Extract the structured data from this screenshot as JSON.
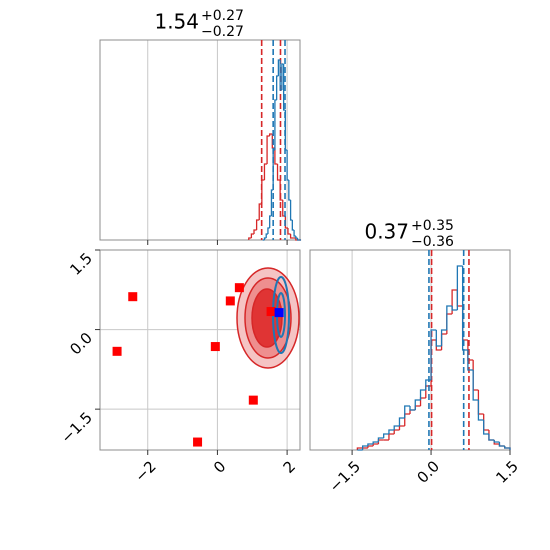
{
  "chart_data": [
    {
      "type": "histogram",
      "title": "1.54",
      "title_sup": "+0.27",
      "title_sub": "−0.27",
      "xlim": [
        -3.37,
        2.37
      ],
      "ylim": [
        0,
        100
      ],
      "xticks": [
        -2,
        0,
        2
      ],
      "tick_labels": false,
      "grid": true,
      "series": [
        {
          "color": "#d62728",
          "bins": [
            0.9,
            0.975,
            1.05,
            1.125,
            1.2,
            1.275,
            1.35,
            1.425,
            1.5,
            1.575,
            1.65,
            1.725,
            1.8,
            1.875,
            1.95,
            2.025,
            2.1,
            2.175,
            2.25,
            2.325,
            2.4
          ],
          "values": [
            1,
            3,
            5,
            10,
            18,
            30,
            38,
            52,
            53,
            46,
            38,
            30,
            20,
            12,
            6,
            3,
            1,
            1,
            0,
            0
          ],
          "quantiles": [
            1.27,
            1.81
          ]
        },
        {
          "color": "#1f77b4",
          "bins": [
            1.3,
            1.35,
            1.4,
            1.45,
            1.5,
            1.55,
            1.6,
            1.65,
            1.7,
            1.75,
            1.8,
            1.85,
            1.9,
            1.95,
            2.0,
            2.05,
            2.1,
            2.15,
            2.2,
            2.25,
            2.3,
            2.35,
            2.4
          ],
          "values": [
            0,
            1,
            3,
            6,
            12,
            25,
            45,
            70,
            82,
            90,
            75,
            88,
            65,
            45,
            30,
            20,
            10,
            5,
            2,
            1,
            0,
            0
          ],
          "quantiles": [
            1.6,
            1.94
          ]
        }
      ]
    },
    {
      "type": "scatter",
      "xlim": [
        -3.37,
        2.37
      ],
      "ylim": [
        -2.27,
        1.5
      ],
      "grid": true,
      "xticks": [
        {
          "value": -2,
          "label": "−2"
        },
        0,
        2
      ],
      "yticks": [
        1.5,
        {
          "value": 0,
          "label": "0.0"
        },
        {
          "value": -1.5,
          "label": "−1.5"
        }
      ],
      "series": [
        {
          "color": "#ff0000",
          "x": [
            -2.43,
            -2.88,
            -0.06,
            0.37,
            0.63,
            1.03,
            -0.57,
            1.54
          ],
          "y": [
            0.62,
            -0.41,
            -0.32,
            0.54,
            0.79,
            -1.33,
            -2.12,
            0.34
          ]
        },
        {
          "color": "#0000ff",
          "x": [
            1.77
          ],
          "y": [
            0.32
          ]
        }
      ]
    },
    {
      "type": "histogram",
      "title": "0.37",
      "title_sup": "+0.35",
      "title_sub": "−0.36",
      "xlim": [
        -2.3,
        1.5
      ],
      "ylim": [
        0,
        100
      ],
      "grid": true,
      "xticks": [
        {
          "value": -1.5,
          "label": "−1.5"
        },
        {
          "value": 0,
          "label": "0.0"
        },
        1.5
      ],
      "series": [
        {
          "color": "#d62728",
          "bins": [
            -1.4,
            -1.3,
            -1.2,
            -1.1,
            -1.0,
            -0.9,
            -0.8,
            -0.7,
            -0.6,
            -0.5,
            -0.4,
            -0.3,
            -0.2,
            -0.1,
            0.0,
            0.1,
            0.2,
            0.3,
            0.4,
            0.5,
            0.6,
            0.7,
            0.8,
            0.9,
            1.0,
            1.1,
            1.2,
            1.3,
            1.4,
            1.5
          ],
          "values": [
            1,
            1,
            2,
            3,
            5,
            5,
            8,
            10,
            12,
            18,
            20,
            22,
            26,
            32,
            55,
            50,
            58,
            68,
            80,
            72,
            55,
            45,
            30,
            18,
            10,
            5,
            3,
            2,
            1
          ],
          "quantiles": [
            0.01,
            0.72
          ]
        },
        {
          "color": "#1f77b4",
          "bins": [
            -1.4,
            -1.3,
            -1.2,
            -1.1,
            -1.0,
            -0.9,
            -0.8,
            -0.7,
            -0.6,
            -0.5,
            -0.4,
            -0.3,
            -0.2,
            -0.1,
            0.0,
            0.1,
            0.2,
            0.3,
            0.4,
            0.5,
            0.6,
            0.7,
            0.8,
            0.9,
            1.0,
            1.1,
            1.2,
            1.3,
            1.4,
            1.5
          ],
          "values": [
            0,
            2,
            3,
            4,
            6,
            8,
            10,
            12,
            16,
            22,
            20,
            25,
            30,
            35,
            60,
            52,
            60,
            72,
            70,
            92,
            50,
            40,
            25,
            15,
            8,
            5,
            4,
            2,
            1
          ],
          "quantiles": [
            -0.04,
            0.62
          ]
        }
      ]
    }
  ]
}
